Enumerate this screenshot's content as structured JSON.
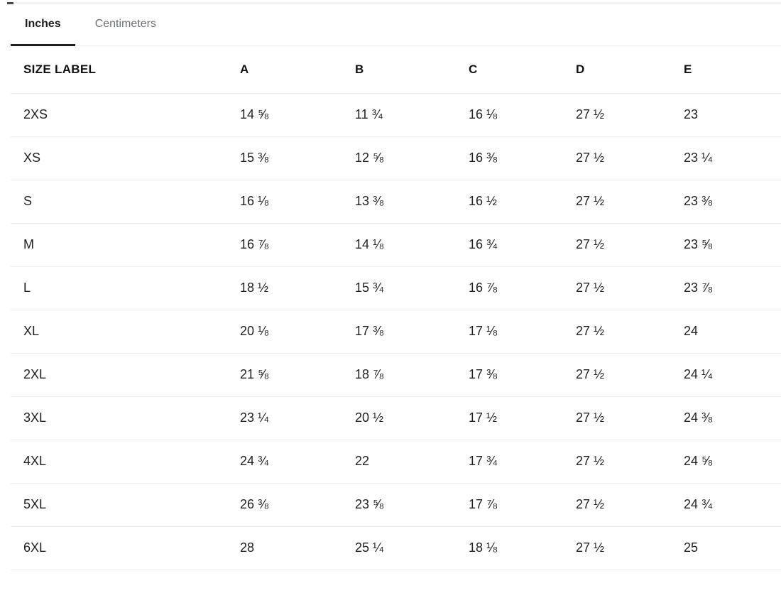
{
  "unit_tabs": [
    {
      "label": "Inches",
      "active": true
    },
    {
      "label": "Centimeters",
      "active": false
    }
  ],
  "table": {
    "columns": [
      "SIZE LABEL",
      "A",
      "B",
      "C",
      "D",
      "E"
    ],
    "rows": [
      {
        "size": "2XS",
        "A": "14 ⅝",
        "B": "11 ¾",
        "C": "16 ⅛",
        "D": "27 ½",
        "E": "23"
      },
      {
        "size": "XS",
        "A": "15 ⅜",
        "B": "12 ⅝",
        "C": "16 ⅜",
        "D": "27 ½",
        "E": "23 ¼"
      },
      {
        "size": "S",
        "A": "16 ⅛",
        "B": "13 ⅜",
        "C": "16 ½",
        "D": "27 ½",
        "E": "23 ⅜"
      },
      {
        "size": "M",
        "A": "16 ⅞",
        "B": "14 ⅛",
        "C": "16 ¾",
        "D": "27 ½",
        "E": "23 ⅝"
      },
      {
        "size": "L",
        "A": "18 ½",
        "B": "15 ¾",
        "C": "16 ⅞",
        "D": "27 ½",
        "E": "23 ⅞"
      },
      {
        "size": "XL",
        "A": "20 ⅛",
        "B": "17 ⅜",
        "C": "17 ⅛",
        "D": "27 ½",
        "E": "24"
      },
      {
        "size": "2XL",
        "A": "21 ⅝",
        "B": "18 ⅞",
        "C": "17 ⅜",
        "D": "27 ½",
        "E": "24 ¼"
      },
      {
        "size": "3XL",
        "A": "23 ¼",
        "B": "20 ½",
        "C": "17 ½",
        "D": "27 ½",
        "E": "24 ⅜"
      },
      {
        "size": "4XL",
        "A": "24 ¾",
        "B": "22",
        "C": "17 ¾",
        "D": "27 ½",
        "E": "24 ⅝"
      },
      {
        "size": "5XL",
        "A": "26 ⅜",
        "B": "23 ⅝",
        "C": "17 ⅞",
        "D": "27 ½",
        "E": "24 ¾"
      },
      {
        "size": "6XL",
        "A": "28",
        "B": "25 ¼",
        "C": "18 ⅛",
        "D": "27 ½",
        "E": "25"
      }
    ]
  },
  "colors": {
    "text_color": "#1e2022",
    "inactive_tab_color": "#6b7177",
    "border_color": "#ececec",
    "accent_color": "#1d1d1d"
  }
}
